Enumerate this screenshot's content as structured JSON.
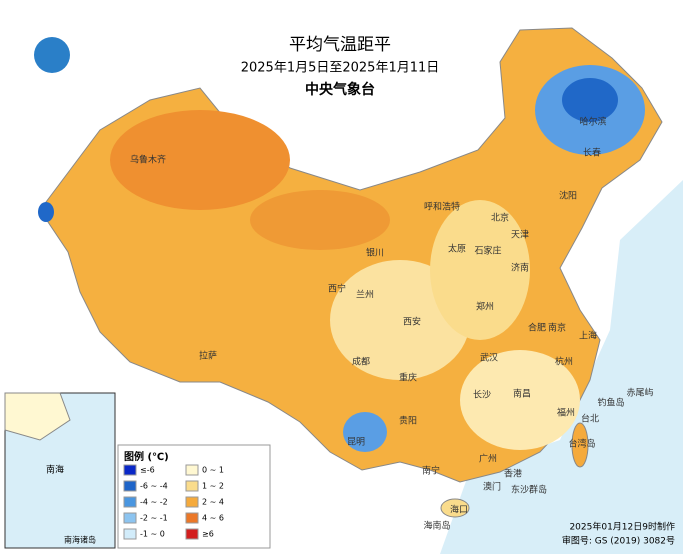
{
  "header": {
    "title": "平均气温距平",
    "subtitle": "2025年1月5日至2025年1月11日",
    "publisher": "中央气象台"
  },
  "legend": {
    "title": "图例 (℃)",
    "items": [
      {
        "label": "≤-6",
        "color": "#0a28c8"
      },
      {
        "label": "-6 ~ -4",
        "color": "#1e64c8"
      },
      {
        "label": "-4 ~ -2",
        "color": "#4a96e0"
      },
      {
        "label": "-2 ~ -1",
        "color": "#8cc4f0"
      },
      {
        "label": "-1 ~ 0",
        "color": "#d2ecfa"
      },
      {
        "label": "0 ~ 1",
        "color": "#fff8d2"
      },
      {
        "label": "1 ~ 2",
        "color": "#fadc8c"
      },
      {
        "label": "2 ~ 4",
        "color": "#f5aa3c"
      },
      {
        "label": "4 ~ 6",
        "color": "#eb7828"
      },
      {
        "label": "≥6",
        "color": "#d21e1e"
      }
    ]
  },
  "cities": [
    "乌鲁木齐",
    "哈尔滨",
    "长春",
    "沈阳",
    "呼和浩特",
    "北京",
    "天津",
    "石家庄",
    "太原",
    "济南",
    "银川",
    "西宁",
    "兰州",
    "郑州",
    "西安",
    "合肥",
    "南京",
    "上海",
    "成都",
    "武汉",
    "杭州",
    "拉萨",
    "重庆",
    "长沙",
    "南昌",
    "福州",
    "台北",
    "贵阳",
    "昆明",
    "南宁",
    "广州",
    "香港",
    "澳门",
    "海口",
    "台湾岛",
    "钓鱼岛",
    "赤尾屿",
    "东沙群岛",
    "海南岛"
  ],
  "inset": {
    "sea": "南海",
    "label": "南海诸岛"
  },
  "footer": {
    "date": "2025年01月12日9时制作",
    "approval": "审图号: GS (2019) 3082号"
  }
}
